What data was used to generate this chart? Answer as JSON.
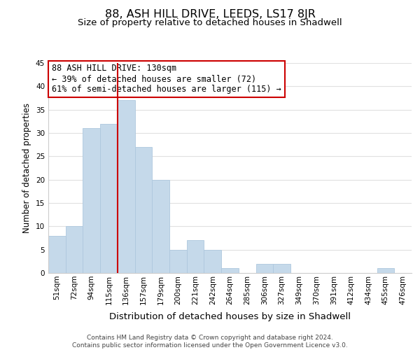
{
  "title": "88, ASH HILL DRIVE, LEEDS, LS17 8JR",
  "subtitle": "Size of property relative to detached houses in Shadwell",
  "xlabel": "Distribution of detached houses by size in Shadwell",
  "ylabel": "Number of detached properties",
  "bar_labels": [
    "51sqm",
    "72sqm",
    "94sqm",
    "115sqm",
    "136sqm",
    "157sqm",
    "179sqm",
    "200sqm",
    "221sqm",
    "242sqm",
    "264sqm",
    "285sqm",
    "306sqm",
    "327sqm",
    "349sqm",
    "370sqm",
    "391sqm",
    "412sqm",
    "434sqm",
    "455sqm",
    "476sqm"
  ],
  "bar_heights": [
    8,
    10,
    31,
    32,
    37,
    27,
    20,
    5,
    7,
    5,
    1,
    0,
    2,
    2,
    0,
    0,
    0,
    0,
    0,
    1,
    0
  ],
  "bar_color": "#c5d9ea",
  "bar_edge_color": "#aec8de",
  "grid_color": "#e0e0e0",
  "vline_x_index": 4,
  "vline_color": "#cc0000",
  "annotation_text": "88 ASH HILL DRIVE: 130sqm\n← 39% of detached houses are smaller (72)\n61% of semi-detached houses are larger (115) →",
  "annotation_box_color": "#ffffff",
  "annotation_box_edge": "#cc0000",
  "ylim": [
    0,
    45
  ],
  "yticks": [
    0,
    5,
    10,
    15,
    20,
    25,
    30,
    35,
    40,
    45
  ],
  "footer_text": "Contains HM Land Registry data © Crown copyright and database right 2024.\nContains public sector information licensed under the Open Government Licence v3.0.",
  "bg_color": "#ffffff",
  "title_fontsize": 11.5,
  "subtitle_fontsize": 9.5,
  "xlabel_fontsize": 9.5,
  "ylabel_fontsize": 8.5,
  "tick_fontsize": 7.5,
  "annotation_fontsize": 8.5,
  "footer_fontsize": 6.5
}
